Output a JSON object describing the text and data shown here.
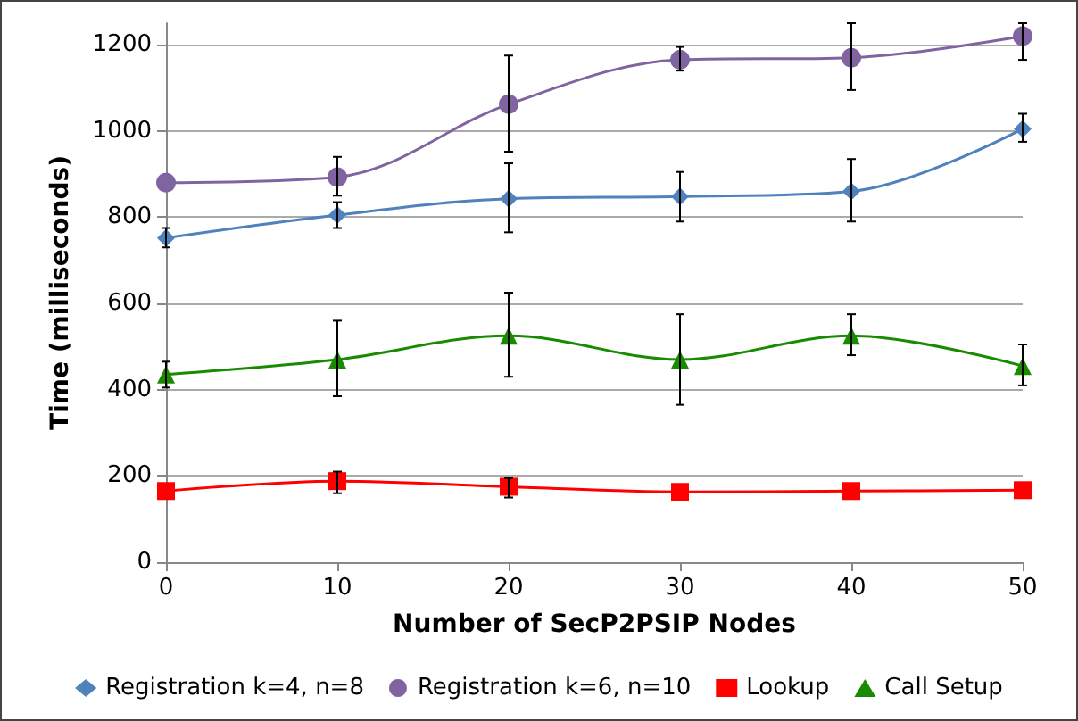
{
  "chart_data": {
    "type": "line",
    "xlabel": "Number of SecP2PSIP Nodes",
    "ylabel": "Time (milliseconds)",
    "x": [
      0,
      10,
      20,
      30,
      40,
      50
    ],
    "series": [
      {
        "name": "Registration k=4, n=8",
        "color": "#4f81bd",
        "marker": "diamond",
        "values": [
          752,
          805,
          843,
          848,
          860,
          1005
        ],
        "errors": [
          [
            730,
            775
          ],
          [
            775,
            835
          ],
          [
            765,
            925
          ],
          [
            790,
            905
          ],
          [
            790,
            935
          ],
          [
            975,
            1040
          ]
        ]
      },
      {
        "name": "Registration k=6, n=10",
        "color": "#8064a2",
        "marker": "circle",
        "values": [
          880,
          893,
          1062,
          1165,
          1170,
          1220
        ],
        "errors": [
          null,
          [
            850,
            940
          ],
          [
            952,
            1175
          ],
          [
            1140,
            1195
          ],
          [
            1095,
            1250
          ],
          [
            1165,
            1250
          ]
        ]
      },
      {
        "name": "Lookup",
        "color": "#ff0000",
        "marker": "square",
        "values": [
          165,
          188,
          175,
          163,
          165,
          167
        ],
        "errors": [
          null,
          [
            160,
            210
          ],
          [
            150,
            195
          ],
          null,
          null,
          null
        ]
      },
      {
        "name": "Call Setup",
        "color": "#1a8a00",
        "marker": "triangle",
        "values": [
          435,
          470,
          525,
          470,
          525,
          455
        ],
        "errors": [
          [
            405,
            465
          ],
          [
            385,
            560
          ],
          [
            430,
            625
          ],
          [
            365,
            575
          ],
          [
            480,
            575
          ],
          [
            410,
            505
          ]
        ]
      }
    ],
    "xlim": [
      0,
      50
    ],
    "xticks": [
      0,
      10,
      20,
      30,
      40,
      50
    ],
    "ylim": [
      0,
      1250
    ],
    "yticks": [
      0,
      200,
      400,
      600,
      800,
      1000,
      1200
    ],
    "grid": "y",
    "legend": "bottom",
    "line_style": "solid"
  }
}
